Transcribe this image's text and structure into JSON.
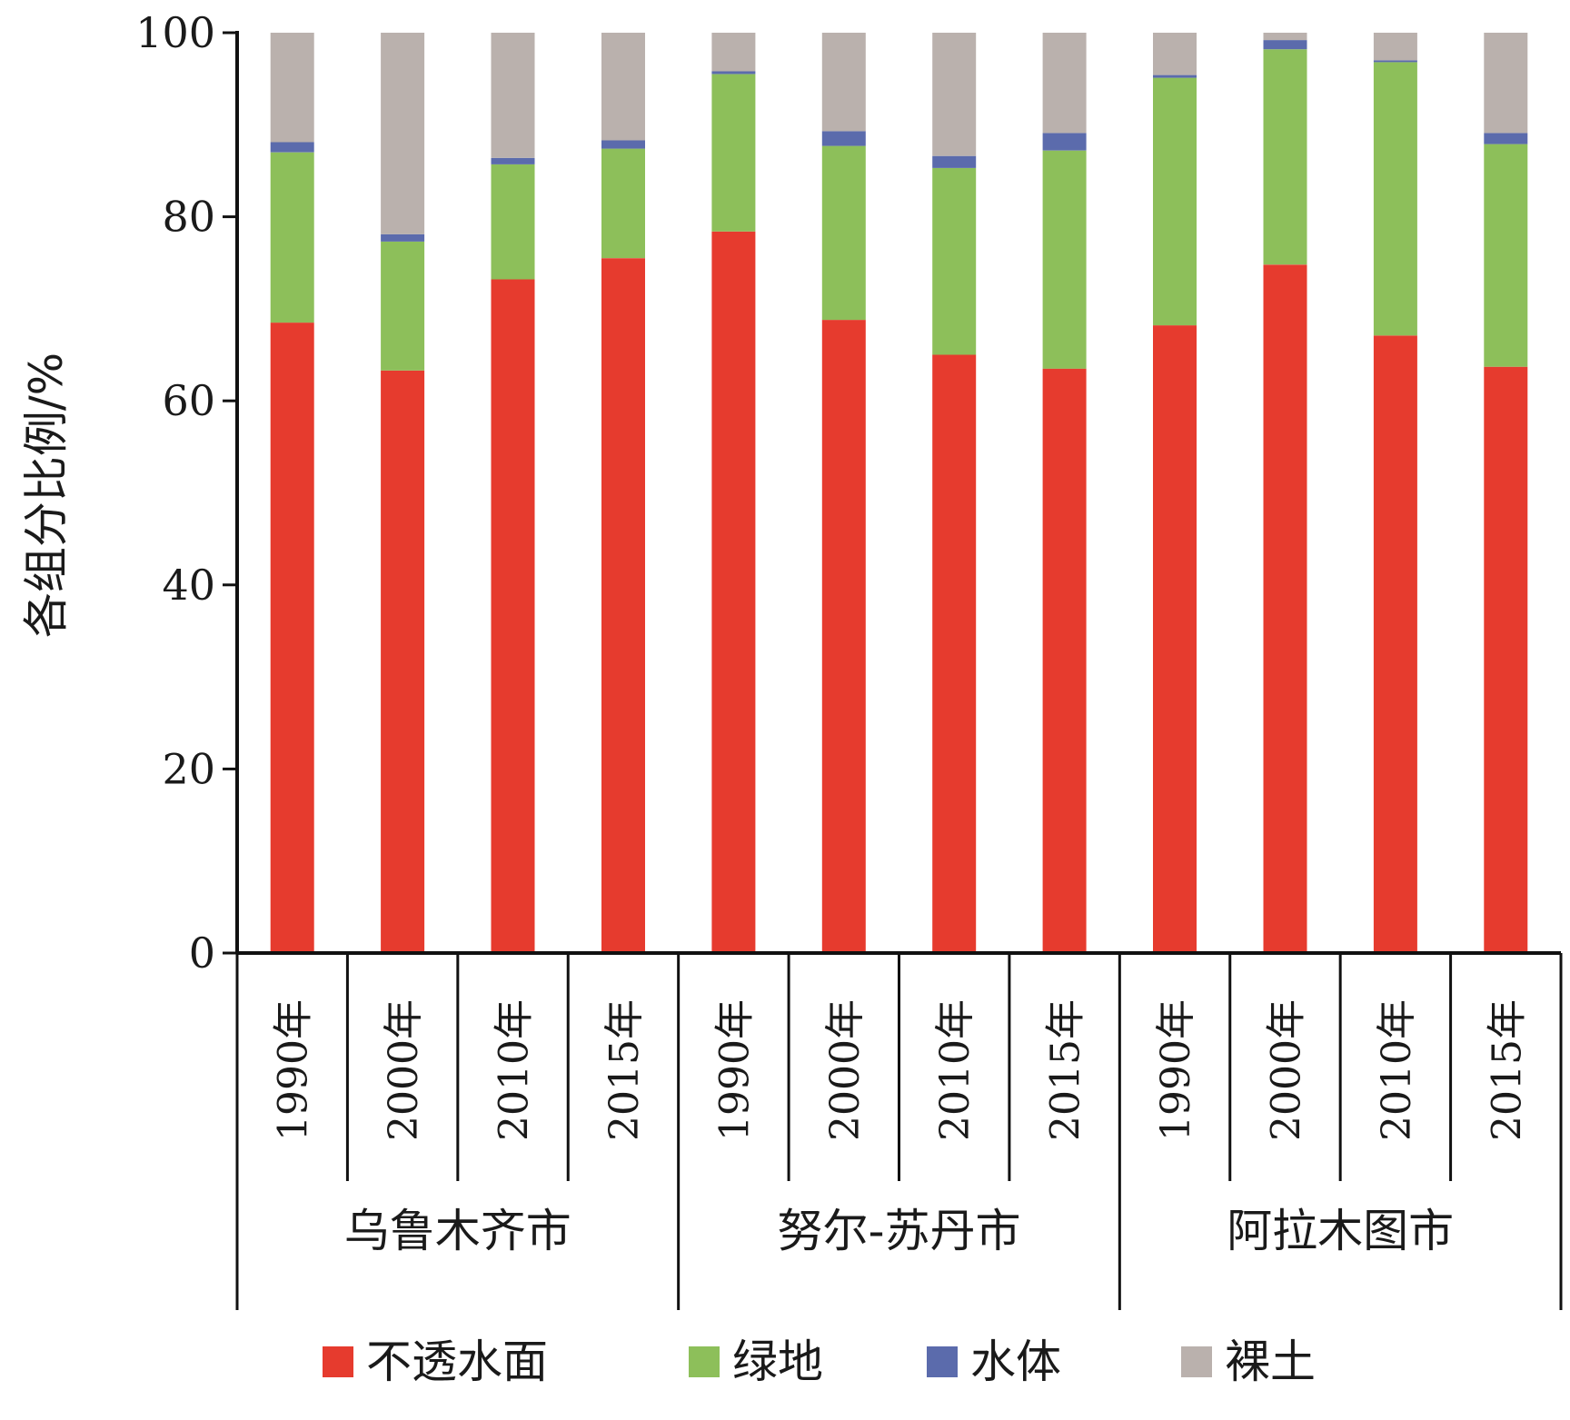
{
  "chart_data": {
    "type": "bar",
    "stacked": true,
    "ylabel": "各组分比例/%",
    "ylim": [
      0,
      100
    ],
    "yticks": [
      0,
      20,
      40,
      60,
      80,
      100
    ],
    "groups": [
      {
        "label": "乌鲁木齐市",
        "categories": [
          "1990年",
          "2000年",
          "2010年",
          "2015年"
        ]
      },
      {
        "label": "努尔-苏丹市",
        "categories": [
          "1990年",
          "2000年",
          "2010年",
          "2015年"
        ]
      },
      {
        "label": "阿拉木图市",
        "categories": [
          "1990年",
          "2000年",
          "2010年",
          "2015年"
        ]
      }
    ],
    "series": [
      {
        "name": "不透水面",
        "color": "#e63b2e",
        "values": [
          68.5,
          63.3,
          73.2,
          75.5,
          78.4,
          68.8,
          65.0,
          63.5,
          68.2,
          74.8,
          67.1,
          63.7
        ]
      },
      {
        "name": "绿地",
        "color": "#8dbf5a",
        "values": [
          18.5,
          14.0,
          12.5,
          11.9,
          17.1,
          18.9,
          20.3,
          23.7,
          26.9,
          23.4,
          29.7,
          24.2
        ]
      },
      {
        "name": "水体",
        "color": "#5b6bac",
        "values": [
          1.1,
          0.8,
          0.7,
          0.9,
          0.3,
          1.6,
          1.3,
          1.9,
          0.3,
          1.0,
          0.2,
          1.2
        ]
      },
      {
        "name": "裸土",
        "color": "#bab1ad",
        "values": [
          11.9,
          21.9,
          13.6,
          11.7,
          4.2,
          10.7,
          13.4,
          10.9,
          4.6,
          0.8,
          3.0,
          10.9
        ]
      }
    ],
    "legend_position": "bottom",
    "grid": false
  }
}
